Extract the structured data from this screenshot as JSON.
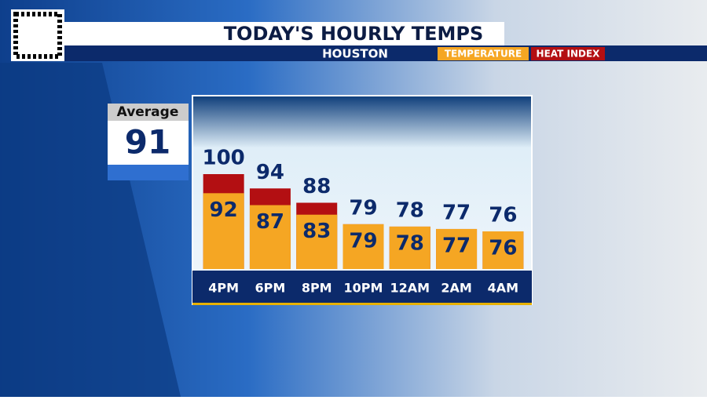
{
  "chart_data": {
    "type": "bar",
    "title": "TODAY'S HOURLY TEMPS",
    "subtitle": "HOUSTON",
    "average": {
      "label": "Average",
      "value": 91
    },
    "categories": [
      "4PM",
      "6PM",
      "8PM",
      "10PM",
      "12AM",
      "2AM",
      "4AM"
    ],
    "series": [
      {
        "name": "TEMPERATURE",
        "color": "#f5a623",
        "values": [
          92,
          87,
          83,
          79,
          78,
          77,
          76
        ]
      },
      {
        "name": "HEAT INDEX",
        "color": "#b30f12",
        "values": [
          100,
          94,
          88,
          79,
          78,
          77,
          76
        ]
      }
    ]
  }
}
